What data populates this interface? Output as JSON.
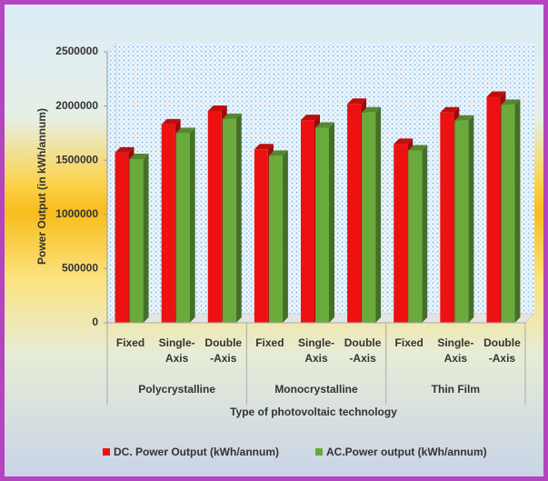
{
  "chart_data": {
    "type": "bar",
    "categories": [
      "Fixed",
      "Single-Axis",
      "Double-Axis",
      "Fixed",
      "Single-Axis",
      "Double-Axis",
      "Fixed",
      "Single-Axis",
      "Double-Axis"
    ],
    "groups": [
      "Polycrystalline",
      "Monocrystalline",
      "Thin Film"
    ],
    "x_label": "Type of photovoltaic technology",
    "y_label": "Power Output (in kWh/annum)",
    "series": [
      {
        "name": "DC. Power Output (kWh/annum)",
        "color": "#ee1111",
        "values": [
          1570000,
          1830000,
          1955000,
          1600000,
          1870000,
          2020000,
          1650000,
          1940000,
          2085000
        ]
      },
      {
        "name": "AC.Power output (kWh/annum)",
        "color": "#6aaa3a",
        "values": [
          1510000,
          1750000,
          1880000,
          1540000,
          1800000,
          1940000,
          1590000,
          1865000,
          2010000
        ]
      }
    ],
    "ylim": [
      0,
      2500000
    ],
    "yticks": [
      0,
      500000,
      1000000,
      1500000,
      2000000,
      2500000
    ],
    "grid": false,
    "legend": "bottom"
  }
}
